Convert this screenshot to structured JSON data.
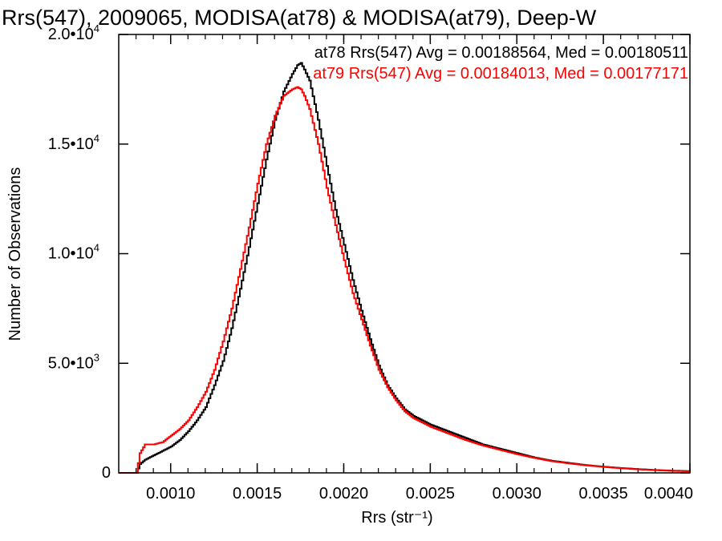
{
  "chart_data": {
    "type": "line",
    "title": "Rrs(547), 2009065, MODISA(at78) & MODISA(at79), Deep-W",
    "xlabel": "Rrs (str⁻¹)",
    "ylabel": "Number of Observations",
    "xlim": [
      0.0007,
      0.004
    ],
    "ylim": [
      0,
      20000
    ],
    "x_ticks": [
      {
        "value": 0.001,
        "label": "0.0010"
      },
      {
        "value": 0.0015,
        "label": "0.0015"
      },
      {
        "value": 0.002,
        "label": "0.0020"
      },
      {
        "value": 0.0025,
        "label": "0.0025"
      },
      {
        "value": 0.003,
        "label": "0.0030"
      },
      {
        "value": 0.0035,
        "label": "0.0035"
      },
      {
        "value": 0.004,
        "label": "0.0040"
      }
    ],
    "y_ticks": [
      {
        "value": 0,
        "mantissa": "0",
        "exp": ""
      },
      {
        "value": 5000,
        "mantissa": "5.0•",
        "exp": "3"
      },
      {
        "value": 10000,
        "mantissa": "1.0•",
        "exp": "4"
      },
      {
        "value": 15000,
        "mantissa": "1.5•",
        "exp": "4"
      },
      {
        "value": 20000,
        "mantissa": "2.0•",
        "exp": "4"
      }
    ],
    "grid": false,
    "legend_position": "top-right",
    "annotations": [
      {
        "text": "at78 Rrs(547) Avg = 0.00188564, Med = 0.00180511",
        "color": "#000000"
      },
      {
        "text": "at79 Rrs(547) Avg = 0.00184013, Med = 0.00177171",
        "color": "#ff0000"
      }
    ],
    "series": [
      {
        "color": "#000000",
        "x": [
          0.0007,
          0.0008,
          0.00082,
          0.00085,
          0.0009,
          0.00095,
          0.001,
          0.00105,
          0.0011,
          0.00115,
          0.0012,
          0.00125,
          0.0013,
          0.00135,
          0.0014,
          0.00145,
          0.0015,
          0.00155,
          0.0016,
          0.00165,
          0.0017,
          0.00173,
          0.00175,
          0.00177,
          0.0018,
          0.00185,
          0.0019,
          0.00195,
          0.002,
          0.00205,
          0.0021,
          0.00215,
          0.0022,
          0.00225,
          0.0023,
          0.00235,
          0.0024,
          0.0025,
          0.0026,
          0.0027,
          0.0028,
          0.0029,
          0.003,
          0.0031,
          0.0032,
          0.0033,
          0.0034,
          0.0035,
          0.0036,
          0.0037,
          0.0038,
          0.0039,
          0.004
        ],
        "y": [
          0,
          0,
          400,
          600,
          800,
          1000,
          1200,
          1500,
          1900,
          2400,
          3000,
          4000,
          5100,
          6600,
          8400,
          10300,
          12300,
          14300,
          16100,
          17400,
          18200,
          18600,
          18700,
          18400,
          17900,
          16100,
          14000,
          12000,
          10400,
          8800,
          7400,
          6100,
          4900,
          4000,
          3400,
          2900,
          2600,
          2200,
          1900,
          1600,
          1300,
          1100,
          900,
          700,
          550,
          450,
          350,
          280,
          220,
          170,
          130,
          100,
          80
        ]
      },
      {
        "color": "#ff0000",
        "x": [
          0.0007,
          0.0008,
          0.00082,
          0.00085,
          0.0009,
          0.00095,
          0.001,
          0.00105,
          0.0011,
          0.00115,
          0.0012,
          0.00125,
          0.0013,
          0.00135,
          0.0014,
          0.00145,
          0.0015,
          0.00155,
          0.0016,
          0.00165,
          0.0017,
          0.00173,
          0.00175,
          0.00177,
          0.0018,
          0.00185,
          0.0019,
          0.00195,
          0.002,
          0.00205,
          0.0021,
          0.00215,
          0.0022,
          0.00225,
          0.0023,
          0.00235,
          0.0024,
          0.0025,
          0.0026,
          0.0027,
          0.0028,
          0.0029,
          0.003,
          0.0031,
          0.0032,
          0.0033,
          0.0034,
          0.0035,
          0.0036,
          0.0037,
          0.0038,
          0.0039,
          0.004
        ],
        "y": [
          0,
          0,
          900,
          1300,
          1300,
          1400,
          1700,
          2000,
          2400,
          3000,
          3700,
          4700,
          6000,
          7500,
          9300,
          11200,
          13200,
          15000,
          16300,
          17200,
          17500,
          17600,
          17500,
          17200,
          16600,
          15000,
          13000,
          11300,
          9700,
          8200,
          7000,
          5800,
          4700,
          3900,
          3300,
          2800,
          2500,
          2100,
          1800,
          1500,
          1250,
          1050,
          850,
          680,
          530,
          430,
          340,
          270,
          210,
          160,
          120,
          90,
          70
        ]
      }
    ]
  }
}
